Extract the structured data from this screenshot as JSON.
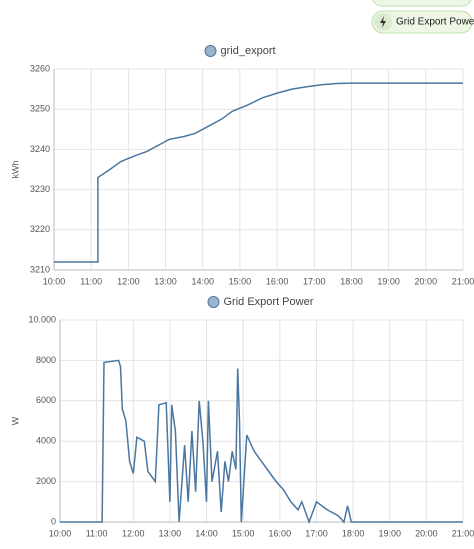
{
  "chips": [
    "Grid Export Power"
  ],
  "chart_data": [
    {
      "type": "line",
      "ylabel": "kWh",
      "grid": true,
      "x": [
        10,
        11.18,
        11.18,
        11.5,
        11.8,
        12.2,
        12.5,
        12.8,
        13.1,
        13.5,
        13.8,
        14.1,
        14.5,
        14.8,
        15.2,
        15.6,
        16,
        16.4,
        16.8,
        17.2,
        17.6,
        18,
        21
      ],
      "series": [
        {
          "name": "grid_export",
          "color": "#4a76a0",
          "values": [
            3212,
            3212,
            3233,
            3235,
            3237,
            3238.5,
            3239.5,
            3241,
            3242.5,
            3243.2,
            3244,
            3245.5,
            3247.5,
            3249.5,
            3251,
            3252.8,
            3254,
            3255,
            3255.6,
            3256.1,
            3256.4,
            3256.5,
            3256.5
          ]
        }
      ],
      "xlim": [
        10,
        21
      ],
      "xticks": [
        {
          "value": 10,
          "label": "10:00"
        },
        {
          "value": 11,
          "label": "11:00"
        },
        {
          "value": 12,
          "label": "12:00"
        },
        {
          "value": 13,
          "label": "13:00"
        },
        {
          "value": 14,
          "label": "14:00"
        },
        {
          "value": 15,
          "label": "15:00"
        },
        {
          "value": 16,
          "label": "16:00"
        },
        {
          "value": 17,
          "label": "17:00"
        },
        {
          "value": 18,
          "label": "18:00"
        },
        {
          "value": 19,
          "label": "19:00"
        },
        {
          "value": 20,
          "label": "20:00"
        },
        {
          "value": 21,
          "label": "21:00"
        }
      ],
      "ylim": [
        3210,
        3260
      ],
      "yticks": [
        3210,
        3220,
        3230,
        3240,
        3250,
        3260
      ]
    },
    {
      "type": "line",
      "ylabel": "W",
      "grid": true,
      "x": [
        10,
        11.15,
        11.2,
        11.6,
        11.65,
        11.7,
        11.8,
        11.9,
        12.0,
        12.1,
        12.3,
        12.4,
        12.6,
        12.7,
        12.9,
        13.0,
        13.05,
        13.15,
        13.25,
        13.4,
        13.5,
        13.6,
        13.7,
        13.8,
        13.9,
        14.0,
        14.05,
        14.15,
        14.3,
        14.4,
        14.5,
        14.6,
        14.7,
        14.8,
        14.85,
        14.9,
        14.95,
        15.1,
        15.3,
        15.5,
        15.7,
        15.9,
        16.1,
        16.3,
        16.5,
        16.6,
        16.8,
        17.0,
        17.3,
        17.6,
        17.75,
        17.85,
        17.95,
        21
      ],
      "series": [
        {
          "name": "Grid Export Power",
          "color": "#4a76a0",
          "values": [
            0,
            0,
            7900,
            8000,
            7700,
            5600,
            5000,
            3000,
            2400,
            4200,
            4000,
            2500,
            2000,
            5800,
            5900,
            1000,
            5800,
            4500,
            0,
            3800,
            1000,
            4500,
            1500,
            6000,
            4000,
            1000,
            6000,
            2000,
            3500,
            500,
            3000,
            2000,
            3500,
            2600,
            7600,
            5000,
            0,
            4300,
            3500,
            3000,
            2500,
            2000,
            1600,
            1000,
            600,
            1000,
            0,
            1000,
            600,
            300,
            0,
            800,
            0,
            0
          ]
        }
      ],
      "xlim": [
        10,
        21
      ],
      "xticks": [
        {
          "value": 10,
          "label": "10:00"
        },
        {
          "value": 11,
          "label": "11:00"
        },
        {
          "value": 12,
          "label": "12:00"
        },
        {
          "value": 13,
          "label": "13:00"
        },
        {
          "value": 14,
          "label": "14:00"
        },
        {
          "value": 15,
          "label": "15:00"
        },
        {
          "value": 16,
          "label": "16:00"
        },
        {
          "value": 17,
          "label": "17:00"
        },
        {
          "value": 18,
          "label": "18:00"
        },
        {
          "value": 19,
          "label": "19:00"
        },
        {
          "value": 20,
          "label": "20:00"
        },
        {
          "value": 21,
          "label": "21:00"
        }
      ],
      "ylim": [
        0,
        10000
      ],
      "yticks": [
        0,
        2000,
        4000,
        6000,
        8000,
        {
          "value": 10000,
          "label": "10.000"
        }
      ]
    }
  ]
}
